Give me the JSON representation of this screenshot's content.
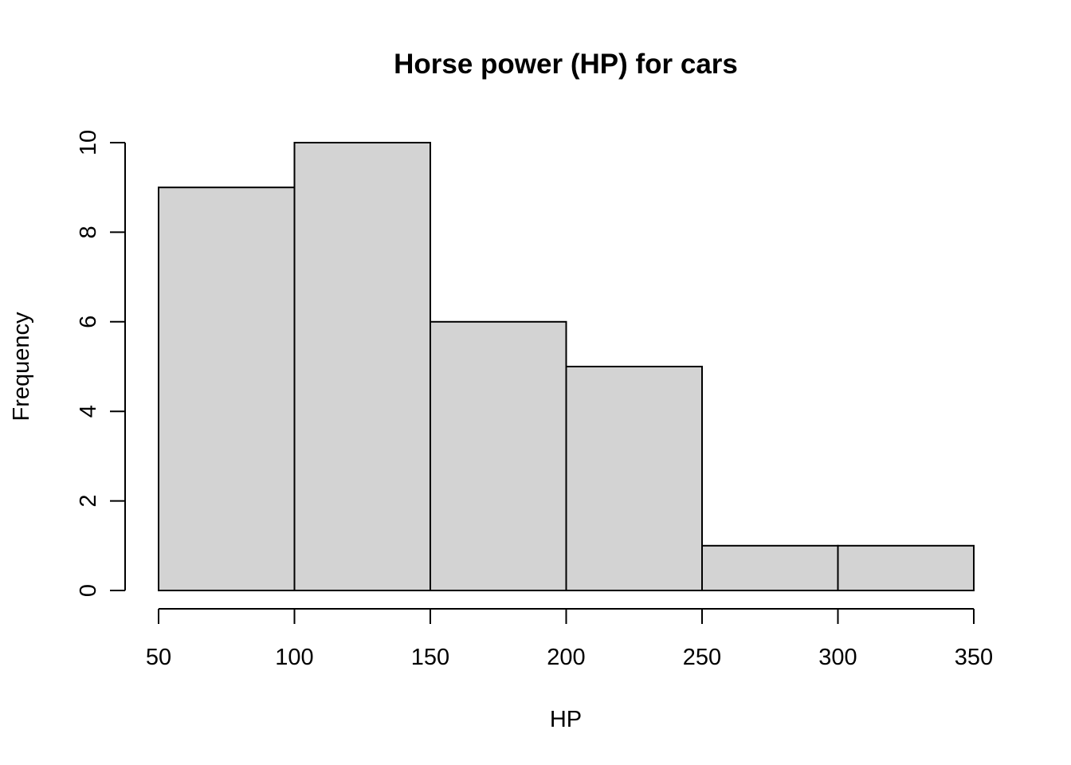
{
  "chart_data": {
    "type": "bar",
    "subtype": "histogram",
    "title": "Horse power (HP) for cars",
    "xlabel": "HP",
    "ylabel": "Frequency",
    "bins": [
      {
        "from": 50,
        "to": 100,
        "count": 9
      },
      {
        "from": 100,
        "to": 150,
        "count": 10
      },
      {
        "from": 150,
        "to": 200,
        "count": 6
      },
      {
        "from": 200,
        "to": 250,
        "count": 5
      },
      {
        "from": 250,
        "to": 300,
        "count": 1
      },
      {
        "from": 300,
        "to": 350,
        "count": 1
      }
    ],
    "xlim": [
      50,
      350
    ],
    "ylim": [
      0,
      10
    ],
    "x_ticks": [
      "50",
      "100",
      "150",
      "200",
      "250",
      "300",
      "350"
    ],
    "y_ticks": [
      "0",
      "2",
      "4",
      "6",
      "8",
      "10"
    ],
    "grid": false,
    "colors": {
      "bar_fill": "#d3d3d3",
      "bar_border": "#000000",
      "background": "#ffffff"
    }
  }
}
